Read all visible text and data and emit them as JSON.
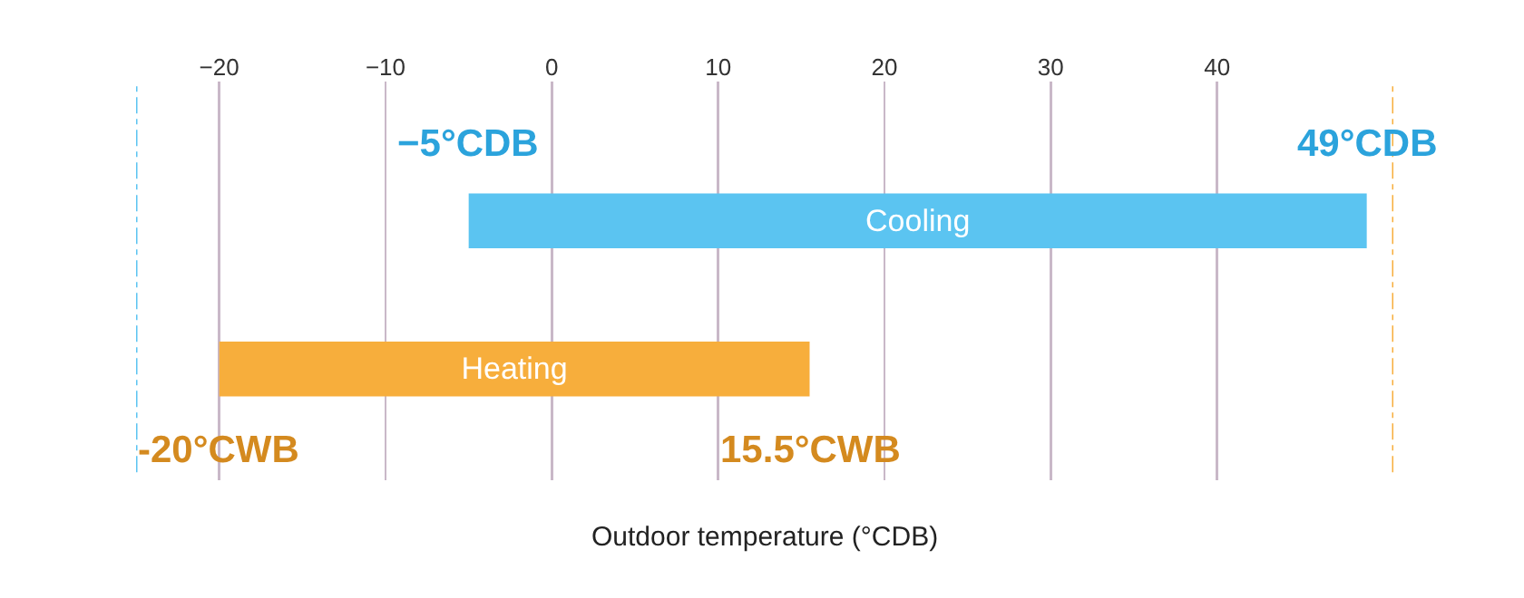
{
  "chart_data": {
    "type": "bar",
    "orientation": "horizontal",
    "categories": [
      "Cooling",
      "Heating"
    ],
    "base": [
      -5,
      -20
    ],
    "values": [
      54,
      35.5
    ],
    "colors": [
      "#5bc4f1",
      "#f7ae3c"
    ],
    "xlabel": "Outdoor temperature (°CDB)",
    "xlim": [
      -25,
      50.6
    ],
    "xticks": [
      -20,
      -10,
      0,
      10,
      20,
      30,
      40
    ],
    "grid": "x",
    "annotations": [
      {
        "text": "−5°CDB",
        "x": -5,
        "y": "Cooling"
      },
      {
        "text": "49°CDB",
        "x": 49,
        "y": "Cooling"
      },
      {
        "text": "-20°CWB",
        "x": -20,
        "y": "Heating"
      },
      {
        "text": "15.5°CWB",
        "x": 15.5,
        "y": "Heating"
      }
    ],
    "ref_lines": [
      {
        "axis": "x",
        "value": -25,
        "color": "#5bc4f1",
        "line_style": "dashed"
      },
      {
        "axis": "x",
        "value": 50.6,
        "color": "#f7ae3c",
        "line_style": "dashed"
      }
    ]
  }
}
